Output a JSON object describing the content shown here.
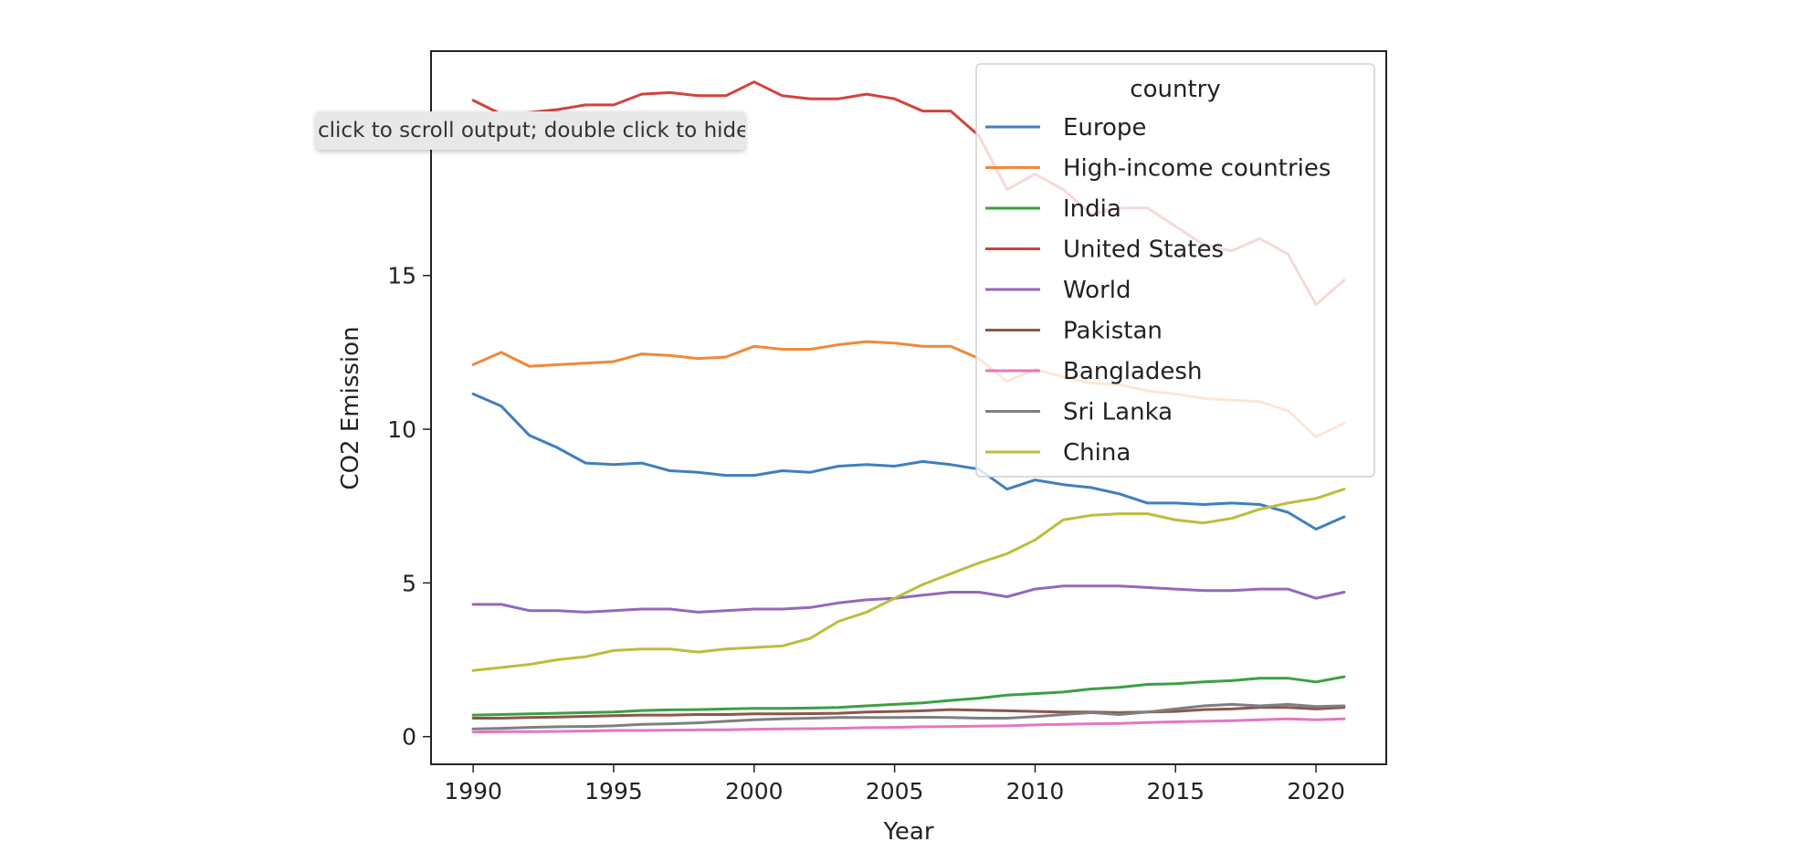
{
  "tooltip": {
    "text": "click to scroll output; double click to hide"
  },
  "chart_data": {
    "type": "line",
    "xlabel": "Year",
    "ylabel": "CO2 Emission",
    "xlim": [
      1988.5,
      2022.5
    ],
    "ylim": [
      -0.9,
      22.3
    ],
    "xticks": [
      1990,
      1995,
      2000,
      2005,
      2010,
      2015,
      2020
    ],
    "yticks": [
      0,
      5,
      10,
      15
    ],
    "grid": false,
    "legend": {
      "title": "country",
      "placement": "top-right"
    },
    "x": [
      1990,
      1991,
      1992,
      1993,
      1994,
      1995,
      1996,
      1997,
      1998,
      1999,
      2000,
      2001,
      2002,
      2003,
      2004,
      2005,
      2006,
      2007,
      2008,
      2009,
      2010,
      2011,
      2012,
      2013,
      2014,
      2015,
      2016,
      2017,
      2018,
      2019,
      2020,
      2021
    ],
    "series": [
      {
        "name": "Europe",
        "color": "#3f7fbf",
        "values": [
          11.15,
          10.75,
          9.8,
          9.4,
          8.9,
          8.85,
          8.9,
          8.65,
          8.6,
          8.5,
          8.5,
          8.65,
          8.6,
          8.8,
          8.85,
          8.8,
          8.95,
          8.85,
          8.7,
          8.05,
          8.35,
          8.2,
          8.1,
          7.9,
          7.6,
          7.6,
          7.55,
          7.6,
          7.55,
          7.3,
          6.75,
          7.15
        ]
      },
      {
        "name": "High-income countries",
        "color": "#f0883a",
        "values": [
          12.1,
          12.5,
          12.05,
          12.1,
          12.15,
          12.2,
          12.45,
          12.4,
          12.3,
          12.35,
          12.7,
          12.6,
          12.6,
          12.75,
          12.85,
          12.8,
          12.7,
          12.7,
          12.3,
          11.55,
          11.95,
          11.7,
          11.5,
          11.45,
          11.25,
          11.15,
          11.0,
          10.95,
          10.9,
          10.6,
          9.75,
          10.2
        ]
      },
      {
        "name": "India",
        "color": "#3ca042",
        "values": [
          0.7,
          0.72,
          0.74,
          0.76,
          0.78,
          0.8,
          0.85,
          0.87,
          0.88,
          0.9,
          0.92,
          0.92,
          0.93,
          0.95,
          1.0,
          1.05,
          1.1,
          1.18,
          1.25,
          1.35,
          1.4,
          1.45,
          1.55,
          1.6,
          1.7,
          1.72,
          1.78,
          1.82,
          1.9,
          1.9,
          1.78,
          1.95
        ]
      },
      {
        "name": "United States",
        "color": "#d0443c",
        "values": [
          20.7,
          20.25,
          20.3,
          20.4,
          20.55,
          20.55,
          20.9,
          20.95,
          20.85,
          20.85,
          21.3,
          20.85,
          20.75,
          20.75,
          20.9,
          20.75,
          20.35,
          20.35,
          19.55,
          17.8,
          18.3,
          17.8,
          17.0,
          17.2,
          17.2,
          16.6,
          16.0,
          15.8,
          16.2,
          15.7,
          14.05,
          14.85
        ]
      },
      {
        "name": "World",
        "color": "#9467bd",
        "values": [
          4.3,
          4.3,
          4.1,
          4.1,
          4.05,
          4.1,
          4.15,
          4.15,
          4.05,
          4.1,
          4.15,
          4.15,
          4.2,
          4.35,
          4.45,
          4.5,
          4.6,
          4.7,
          4.7,
          4.55,
          4.8,
          4.9,
          4.9,
          4.9,
          4.85,
          4.8,
          4.75,
          4.75,
          4.8,
          4.8,
          4.5,
          4.7
        ]
      },
      {
        "name": "Pakistan",
        "color": "#8c564b",
        "values": [
          0.6,
          0.6,
          0.62,
          0.64,
          0.66,
          0.68,
          0.7,
          0.7,
          0.72,
          0.72,
          0.74,
          0.74,
          0.75,
          0.76,
          0.8,
          0.82,
          0.84,
          0.88,
          0.86,
          0.84,
          0.82,
          0.8,
          0.8,
          0.78,
          0.8,
          0.82,
          0.88,
          0.9,
          0.95,
          0.95,
          0.9,
          0.95
        ]
      },
      {
        "name": "Bangladesh",
        "color": "#e377c2",
        "values": [
          0.15,
          0.16,
          0.16,
          0.17,
          0.18,
          0.2,
          0.2,
          0.21,
          0.22,
          0.22,
          0.24,
          0.25,
          0.26,
          0.27,
          0.29,
          0.3,
          0.32,
          0.33,
          0.34,
          0.35,
          0.38,
          0.4,
          0.42,
          0.43,
          0.46,
          0.48,
          0.5,
          0.52,
          0.55,
          0.58,
          0.55,
          0.58
        ]
      },
      {
        "name": "Sri Lanka",
        "color": "#7f7f7f",
        "values": [
          0.25,
          0.27,
          0.3,
          0.32,
          0.33,
          0.35,
          0.4,
          0.42,
          0.45,
          0.5,
          0.55,
          0.58,
          0.6,
          0.62,
          0.62,
          0.62,
          0.63,
          0.62,
          0.6,
          0.6,
          0.65,
          0.72,
          0.78,
          0.72,
          0.8,
          0.9,
          1.0,
          1.05,
          1.0,
          1.05,
          0.98,
          1.0
        ]
      },
      {
        "name": "China",
        "color": "#bcbd3b",
        "values": [
          2.15,
          2.25,
          2.35,
          2.5,
          2.6,
          2.8,
          2.85,
          2.85,
          2.75,
          2.85,
          2.9,
          2.95,
          3.2,
          3.75,
          4.05,
          4.5,
          4.95,
          5.3,
          5.65,
          5.95,
          6.4,
          7.05,
          7.2,
          7.25,
          7.25,
          7.05,
          6.95,
          7.1,
          7.4,
          7.6,
          7.75,
          8.05
        ]
      }
    ]
  }
}
